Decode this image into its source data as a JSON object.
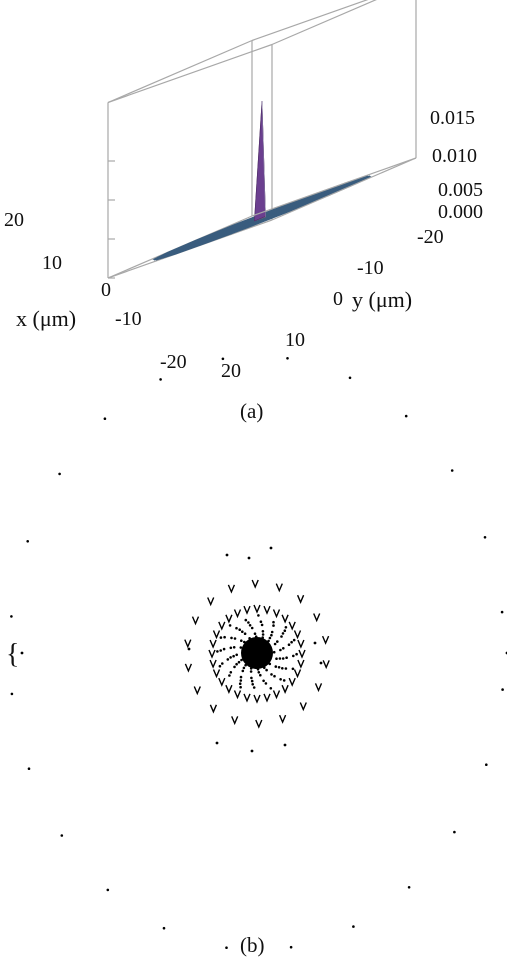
{
  "chart_data": [
    {
      "type": "surface3d",
      "xlabel": "x (μm)",
      "ylabel": "y (μm)",
      "x_ticks": [
        "20",
        "10",
        "0",
        "-10",
        "-20"
      ],
      "y_ticks": [
        "-20",
        "-10",
        "0",
        "10",
        "20"
      ],
      "z_ticks": [
        "0.015",
        "0.010",
        "0.005",
        "0.000"
      ],
      "xlim": [
        -20,
        20
      ],
      "ylim": [
        -20,
        20
      ],
      "zlim": [
        0,
        0.015
      ],
      "peak": {
        "x": 0,
        "y": 0,
        "z": 0.015
      },
      "surface_color": "#9cc6ea",
      "caption": "(a)"
    },
    {
      "type": "scatter",
      "caption": "(b)",
      "marker_color": "#000000",
      "side_label": "{",
      "center_blob": {
        "x": 0,
        "y": 0,
        "r": 16
      },
      "rings": [
        {
          "r": 45,
          "count": 28
        },
        {
          "r": 70,
          "count": 18
        },
        {
          "r": 330,
          "count": 24
        }
      ],
      "points": [
        {
          "x": -8,
          "y": 95
        },
        {
          "x": 14,
          "y": 105
        },
        {
          "x": -30,
          "y": 98
        },
        {
          "x": 58,
          "y": 10
        },
        {
          "x": 64,
          "y": -10
        },
        {
          "x": -68,
          "y": 4
        },
        {
          "x": -5,
          "y": -98
        },
        {
          "x": 28,
          "y": -92
        },
        {
          "x": -40,
          "y": -90
        },
        {
          "x": 250,
          "y": 0
        },
        {
          "x": -235,
          "y": 0
        }
      ]
    }
  ]
}
